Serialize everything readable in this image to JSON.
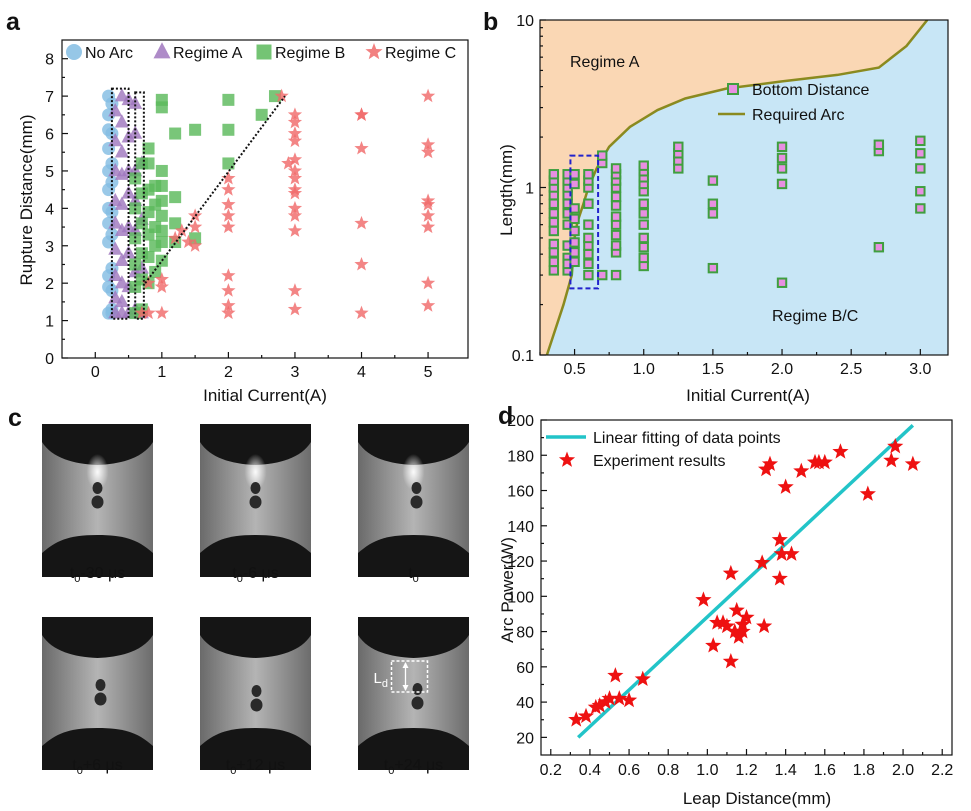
{
  "panels": {
    "a": "a",
    "b": "b",
    "c": "c",
    "d": "d"
  },
  "chart_data": [
    {
      "panel": "a",
      "type": "scatter",
      "xlabel": "Initial Current(A)",
      "ylabel": "Rupture Distance(mm)",
      "xlim": [
        -0.5,
        5.6
      ],
      "ylim": [
        0,
        8.5
      ],
      "xticks": [
        "0",
        "1",
        "2",
        "3",
        "4",
        "5"
      ],
      "yticks": [
        "0",
        "1",
        "2",
        "3",
        "4",
        "5",
        "6",
        "7",
        "8"
      ],
      "legend_position": "top",
      "series": [
        {
          "name": "No Arc",
          "marker": "circle",
          "color": "#84bde3",
          "x": [
            0.2,
            0.2,
            0.2,
            0.2,
            0.2,
            0.2,
            0.2,
            0.2,
            0.2,
            0.2,
            0.2,
            0.2,
            0.25,
            0.25,
            0.25,
            0.25,
            0.25,
            0.25,
            0.25,
            0.25,
            0.25,
            0.25
          ],
          "y": [
            1.2,
            1.9,
            2.2,
            3.1,
            3.6,
            4.0,
            4.5,
            5.0,
            5.6,
            6.1,
            6.5,
            7.0,
            1.2,
            1.8,
            2.4,
            3.3,
            3.9,
            4.7,
            5.2,
            6.0,
            6.8,
            1.3
          ]
        },
        {
          "name": "Regime A",
          "marker": "triangle",
          "color": "#a077be",
          "x": [
            0.3,
            0.3,
            0.3,
            0.3,
            0.3,
            0.3,
            0.3,
            0.3,
            0.3,
            0.4,
            0.4,
            0.4,
            0.4,
            0.4,
            0.4,
            0.4,
            0.4,
            0.4,
            0.4,
            0.5,
            0.5,
            0.5,
            0.5,
            0.5,
            0.5,
            0.5,
            0.5,
            0.6,
            0.6,
            0.6,
            0.6,
            0.6,
            0.6,
            0.6,
            0.7,
            0.7,
            0.7,
            0.7
          ],
          "y": [
            1.2,
            1.6,
            2.2,
            2.9,
            3.6,
            4.2,
            5.0,
            5.8,
            6.6,
            1.2,
            1.5,
            2.0,
            2.6,
            3.4,
            4.1,
            4.9,
            5.5,
            6.3,
            7.0,
            1.2,
            1.9,
            2.8,
            3.5,
            4.4,
            5.0,
            5.9,
            6.9,
            1.3,
            2.3,
            3.4,
            4.2,
            5.0,
            6.0,
            6.8,
            1.2,
            2.4,
            3.7,
            5.2
          ]
        },
        {
          "name": "Regime B",
          "marker": "square",
          "color": "#5cba5c",
          "x": [
            0.6,
            0.6,
            0.6,
            0.6,
            0.6,
            0.6,
            0.7,
            0.7,
            0.7,
            0.7,
            0.7,
            0.7,
            0.8,
            0.8,
            0.8,
            0.8,
            0.8,
            0.8,
            0.8,
            0.9,
            0.9,
            0.9,
            0.9,
            0.9,
            1.0,
            1.0,
            1.0,
            1.0,
            1.0,
            1.0,
            1.0,
            1.0,
            1.0,
            1.2,
            1.2,
            1.2,
            1.2,
            1.5,
            1.5,
            2.0,
            2.0,
            2.0,
            2.5,
            2.7
          ],
          "y": [
            1.2,
            1.9,
            2.5,
            3.2,
            4.0,
            4.8,
            1.3,
            2.1,
            2.8,
            3.6,
            4.4,
            5.2,
            2.0,
            2.7,
            3.3,
            3.9,
            4.5,
            5.2,
            5.6,
            2.3,
            3.0,
            3.5,
            4.1,
            4.6,
            2.6,
            3.1,
            3.4,
            3.8,
            4.2,
            4.6,
            5.0,
            6.7,
            6.9,
            3.1,
            3.6,
            4.3,
            6.0,
            3.2,
            6.1,
            5.2,
            6.1,
            6.9,
            6.5,
            7.0
          ]
        },
        {
          "name": "Regime C",
          "marker": "star",
          "color": "#f06a6a",
          "x": [
            0.7,
            0.8,
            0.8,
            1.0,
            1.0,
            1.0,
            1.2,
            1.3,
            1.4,
            1.5,
            1.5,
            1.5,
            2.0,
            2.0,
            2.0,
            2.0,
            2.0,
            2.0,
            2.0,
            2.0,
            2.0,
            2.8,
            2.9,
            3.0,
            3.0,
            3.0,
            3.0,
            3.0,
            3.0,
            3.0,
            3.0,
            3.0,
            3.0,
            3.0,
            3.0,
            3.0,
            3.0,
            4.0,
            4.0,
            4.0,
            4.0,
            4.0,
            4.0,
            5.0,
            5.0,
            5.0,
            5.0,
            5.0,
            5.0,
            5.0,
            5.0,
            5.0
          ],
          "y": [
            1.2,
            1.2,
            2.0,
            1.2,
            1.9,
            2.1,
            3.2,
            3.4,
            3.1,
            3.0,
            3.5,
            3.8,
            1.2,
            1.4,
            1.8,
            2.2,
            3.5,
            3.8,
            4.1,
            4.5,
            4.8,
            7.0,
            5.2,
            1.3,
            1.8,
            3.4,
            3.8,
            4.0,
            4.4,
            4.8,
            5.0,
            5.3,
            5.8,
            6.0,
            6.3,
            6.5,
            4.5,
            1.2,
            2.5,
            3.6,
            5.6,
            6.5,
            6.5,
            1.4,
            2.0,
            3.5,
            3.8,
            4.1,
            5.5,
            5.7,
            7.0,
            4.2
          ]
        }
      ],
      "boxes": [
        {
          "x": [
            0.25,
            0.5
          ],
          "y": [
            1.05,
            7.2
          ]
        },
        {
          "x": [
            0.6,
            0.73
          ],
          "y": [
            1.05,
            7.1
          ]
        }
      ],
      "trend_line": [
        [
          0.75,
          2.0
        ],
        [
          2.85,
          7.0
        ]
      ]
    },
    {
      "panel": "b",
      "type": "scatter",
      "xlabel": "Initial Current(A)",
      "ylabel": "Length(mm)",
      "xlim": [
        0.25,
        3.2
      ],
      "ylim": [
        0.1,
        10
      ],
      "yscale": "log",
      "xticks": [
        "0.5",
        "1.0",
        "1.5",
        "2.0",
        "2.5",
        "3.0"
      ],
      "yticks": [
        "0.1",
        "1",
        "10"
      ],
      "region_labels": [
        "Regime A",
        "Regime B/C"
      ],
      "region_colors": {
        "regime_a": "#fad7b4",
        "regime_bc": "#c8e6f6"
      },
      "legend_position": "upper-right",
      "series": [
        {
          "name": "Bottom Distance",
          "marker": "square",
          "color": "#e88fe1",
          "edge": "#3f9f3f",
          "x": [
            0.35,
            0.35,
            0.35,
            0.35,
            0.35,
            0.35,
            0.35,
            0.35,
            0.35,
            0.35,
            0.35,
            0.35,
            0.45,
            0.45,
            0.45,
            0.45,
            0.45,
            0.45,
            0.45,
            0.45,
            0.45,
            0.45,
            0.45,
            0.5,
            0.5,
            0.5,
            0.5,
            0.5,
            0.5,
            0.5,
            0.5,
            0.6,
            0.6,
            0.6,
            0.6,
            0.6,
            0.6,
            0.6,
            0.6,
            0.6,
            0.6,
            0.7,
            0.7,
            0.7,
            0.8,
            0.8,
            0.8,
            0.8,
            0.8,
            0.8,
            0.8,
            0.8,
            0.8,
            0.8,
            0.8,
            0.8,
            1.0,
            1.0,
            1.0,
            1.0,
            1.0,
            1.0,
            1.0,
            1.0,
            1.0,
            1.0,
            1.0,
            1.0,
            1.25,
            1.25,
            1.25,
            1.25,
            1.5,
            1.5,
            1.5,
            1.5,
            2.0,
            2.0,
            2.0,
            2.0,
            2.0,
            2.7,
            2.7,
            2.7,
            3.0,
            3.0,
            3.0,
            3.0,
            3.0
          ],
          "y": [
            0.32,
            0.36,
            0.41,
            0.46,
            0.55,
            0.62,
            0.7,
            0.8,
            0.9,
            1.0,
            1.1,
            1.2,
            0.32,
            0.38,
            0.45,
            0.6,
            0.7,
            0.8,
            0.9,
            1.0,
            1.1,
            1.2,
            0.35,
            0.36,
            0.41,
            0.47,
            0.55,
            0.65,
            0.75,
            1.05,
            1.2,
            0.3,
            0.35,
            0.4,
            0.45,
            0.5,
            0.6,
            0.8,
            1.0,
            1.1,
            1.2,
            0.3,
            1.4,
            1.55,
            0.3,
            0.41,
            0.45,
            0.52,
            0.6,
            0.67,
            0.78,
            0.88,
            1.0,
            1.1,
            1.2,
            1.3,
            0.34,
            0.38,
            0.44,
            0.5,
            0.6,
            0.7,
            0.8,
            0.95,
            1.05,
            1.15,
            1.25,
            1.35,
            1.3,
            1.45,
            1.6,
            1.75,
            0.33,
            0.7,
            0.8,
            1.1,
            0.27,
            1.05,
            1.3,
            1.5,
            1.75,
            0.44,
            1.65,
            1.8,
            0.75,
            0.95,
            1.3,
            1.6,
            1.9
          ]
        },
        {
          "name": "Required Arc",
          "type": "line",
          "color": "#8a8a1f",
          "x": [
            0.3,
            0.42,
            0.48,
            0.5,
            0.52,
            0.56,
            0.6,
            0.66,
            0.75,
            0.9,
            1.1,
            1.3,
            1.6,
            2.0,
            2.4,
            2.7,
            2.9,
            3.05
          ],
          "y": [
            0.1,
            0.2,
            0.3,
            0.5,
            0.62,
            0.78,
            1.0,
            1.3,
            1.75,
            2.3,
            2.9,
            3.4,
            3.9,
            4.3,
            4.7,
            5.2,
            7.0,
            10.0
          ]
        }
      ],
      "highlight_box": {
        "x": [
          0.47,
          0.67
        ],
        "y": [
          0.25,
          1.55
        ]
      }
    },
    {
      "panel": "c",
      "type": "image-sequence",
      "frames": [
        {
          "base": "t",
          "sub": "0",
          "suffix": "-30 μs"
        },
        {
          "base": "t",
          "sub": "0",
          "suffix": "-6 μs"
        },
        {
          "base": "t",
          "sub": "0",
          "suffix": ""
        },
        {
          "base": "t",
          "sub": "0",
          "suffix": "+6 μs"
        },
        {
          "base": "t",
          "sub": "0",
          "suffix": "+12 μs"
        },
        {
          "base": "t",
          "sub": "0",
          "suffix": "+24 μs"
        }
      ],
      "annotation": {
        "base": "L",
        "sub": "d"
      }
    },
    {
      "panel": "d",
      "type": "scatter",
      "xlabel": "Leap Distance(mm)",
      "ylabel": "Arc Power(W)",
      "xlim": [
        0.15,
        2.25
      ],
      "ylim": [
        10,
        200
      ],
      "xticks": [
        "0.2",
        "0.4",
        "0.6",
        "0.8",
        "1.0",
        "1.2",
        "1.4",
        "1.6",
        "1.8",
        "2.0",
        "2.2"
      ],
      "yticks": [
        "20",
        "40",
        "60",
        "80",
        "100",
        "120",
        "140",
        "160",
        "180",
        "200"
      ],
      "legend_position": "upper-left",
      "series": [
        {
          "name": "Linear fitting of data points",
          "type": "line",
          "color": "#22c4c8",
          "x": [
            0.34,
            2.05
          ],
          "y": [
            20,
            197
          ]
        },
        {
          "name": "Experiment results",
          "type": "scatter",
          "marker": "star",
          "color": "#ee1111",
          "x": [
            0.33,
            0.38,
            0.43,
            0.45,
            0.48,
            0.5,
            0.53,
            0.55,
            0.6,
            0.67,
            0.98,
            1.03,
            1.05,
            1.08,
            1.1,
            1.12,
            1.12,
            1.14,
            1.15,
            1.16,
            1.18,
            1.18,
            1.2,
            1.28,
            1.29,
            1.3,
            1.32,
            1.37,
            1.37,
            1.38,
            1.4,
            1.43,
            1.48,
            1.55,
            1.57,
            1.6,
            1.68,
            1.82,
            1.94,
            1.96,
            2.05
          ],
          "y": [
            30,
            32,
            37,
            38,
            40,
            42,
            55,
            42,
            41,
            53,
            98,
            72,
            85,
            85,
            83,
            113,
            63,
            80,
            92,
            77,
            80,
            84,
            88,
            119,
            83,
            172,
            175,
            132,
            110,
            124,
            162,
            124,
            171,
            176,
            176,
            176,
            182,
            158,
            177,
            185,
            175
          ]
        }
      ]
    }
  ]
}
